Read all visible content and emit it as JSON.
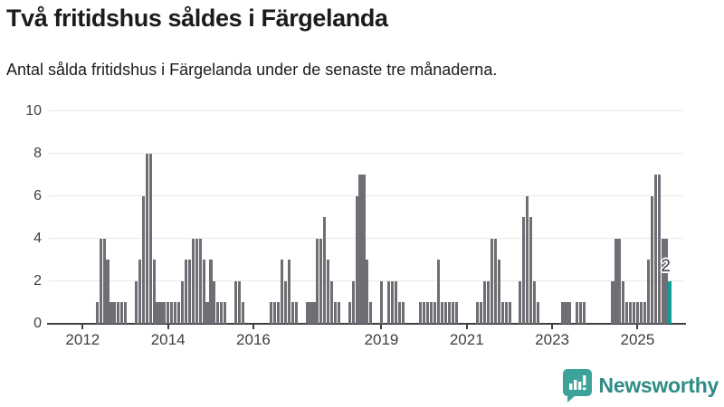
{
  "header": {
    "title": "Två fritidshus såldes i Färgelanda",
    "subtitle": "Antal sålda fritidshus i Färgelanda under de senaste tre månaderna."
  },
  "colors": {
    "bar_gray": "#6f6e74",
    "accent_teal": "#0f9f98",
    "grid": "#e9e9e9",
    "axis": "#403f44",
    "text": "#3e3e43",
    "logo_bubble": "#3da39a",
    "logo_text": "#2e8b85"
  },
  "chart_data": {
    "type": "bar",
    "title": "Två fritidshus såldes i Färgelanda",
    "subtitle": "Antal sålda fritidshus i Färgelanda under de senaste tre månaderna.",
    "ylabel": "",
    "xlabel": "",
    "ylim": [
      0,
      10
    ],
    "yticks": [
      0,
      2,
      4,
      6,
      8,
      10
    ],
    "xtick_years": [
      2012,
      2014,
      2016,
      2019,
      2021,
      2023,
      2025
    ],
    "x_domain_months": [
      "2011-04",
      "2026-01"
    ],
    "grid": true,
    "months_not_listed_are_zero": true,
    "values": [
      [
        "2012-05",
        1
      ],
      [
        "2012-06",
        4
      ],
      [
        "2012-07",
        4
      ],
      [
        "2012-08",
        3
      ],
      [
        "2012-09",
        1
      ],
      [
        "2012-10",
        1
      ],
      [
        "2012-11",
        1
      ],
      [
        "2012-12",
        1
      ],
      [
        "2013-01",
        1
      ],
      [
        "2013-04",
        2
      ],
      [
        "2013-05",
        3
      ],
      [
        "2013-06",
        6
      ],
      [
        "2013-07",
        8
      ],
      [
        "2013-08",
        8
      ],
      [
        "2013-09",
        3
      ],
      [
        "2013-10",
        1
      ],
      [
        "2013-11",
        1
      ],
      [
        "2013-12",
        1
      ],
      [
        "2014-01",
        1
      ],
      [
        "2014-02",
        1
      ],
      [
        "2014-03",
        1
      ],
      [
        "2014-04",
        1
      ],
      [
        "2014-05",
        2
      ],
      [
        "2014-06",
        3
      ],
      [
        "2014-07",
        3
      ],
      [
        "2014-08",
        4
      ],
      [
        "2014-09",
        4
      ],
      [
        "2014-10",
        4
      ],
      [
        "2014-11",
        3
      ],
      [
        "2014-12",
        1
      ],
      [
        "2015-01",
        3
      ],
      [
        "2015-02",
        2
      ],
      [
        "2015-03",
        1
      ],
      [
        "2015-04",
        1
      ],
      [
        "2015-05",
        1
      ],
      [
        "2015-08",
        2
      ],
      [
        "2015-09",
        2
      ],
      [
        "2015-10",
        1
      ],
      [
        "2016-06",
        1
      ],
      [
        "2016-07",
        1
      ],
      [
        "2016-08",
        1
      ],
      [
        "2016-09",
        3
      ],
      [
        "2016-10",
        2
      ],
      [
        "2016-11",
        3
      ],
      [
        "2016-12",
        1
      ],
      [
        "2017-01",
        1
      ],
      [
        "2017-04",
        1
      ],
      [
        "2017-05",
        1
      ],
      [
        "2017-06",
        1
      ],
      [
        "2017-07",
        4
      ],
      [
        "2017-08",
        4
      ],
      [
        "2017-09",
        5
      ],
      [
        "2017-10",
        3
      ],
      [
        "2017-11",
        2
      ],
      [
        "2017-12",
        1
      ],
      [
        "2018-01",
        1
      ],
      [
        "2018-04",
        1
      ],
      [
        "2018-05",
        2
      ],
      [
        "2018-06",
        6
      ],
      [
        "2018-07",
        7
      ],
      [
        "2018-08",
        7
      ],
      [
        "2018-09",
        3
      ],
      [
        "2018-10",
        1
      ],
      [
        "2019-01",
        2
      ],
      [
        "2019-03",
        2
      ],
      [
        "2019-04",
        2
      ],
      [
        "2019-05",
        2
      ],
      [
        "2019-06",
        1
      ],
      [
        "2019-07",
        1
      ],
      [
        "2019-12",
        1
      ],
      [
        "2020-01",
        1
      ],
      [
        "2020-02",
        1
      ],
      [
        "2020-03",
        1
      ],
      [
        "2020-04",
        1
      ],
      [
        "2020-05",
        3
      ],
      [
        "2020-06",
        1
      ],
      [
        "2020-07",
        1
      ],
      [
        "2020-08",
        1
      ],
      [
        "2020-09",
        1
      ],
      [
        "2020-10",
        1
      ],
      [
        "2021-04",
        1
      ],
      [
        "2021-05",
        1
      ],
      [
        "2021-06",
        2
      ],
      [
        "2021-07",
        2
      ],
      [
        "2021-08",
        4
      ],
      [
        "2021-09",
        4
      ],
      [
        "2021-10",
        3
      ],
      [
        "2021-11",
        1
      ],
      [
        "2021-12",
        1
      ],
      [
        "2022-01",
        1
      ],
      [
        "2022-04",
        2
      ],
      [
        "2022-05",
        5
      ],
      [
        "2022-06",
        6
      ],
      [
        "2022-07",
        5
      ],
      [
        "2022-08",
        2
      ],
      [
        "2022-09",
        1
      ],
      [
        "2023-04",
        1
      ],
      [
        "2023-05",
        1
      ],
      [
        "2023-06",
        1
      ],
      [
        "2023-08",
        1
      ],
      [
        "2023-09",
        1
      ],
      [
        "2023-10",
        1
      ],
      [
        "2024-06",
        2
      ],
      [
        "2024-07",
        4
      ],
      [
        "2024-08",
        4
      ],
      [
        "2024-09",
        2
      ],
      [
        "2024-10",
        1
      ],
      [
        "2024-11",
        1
      ],
      [
        "2024-12",
        1
      ],
      [
        "2025-01",
        1
      ],
      [
        "2025-02",
        1
      ],
      [
        "2025-03",
        1
      ],
      [
        "2025-04",
        3
      ],
      [
        "2025-05",
        6
      ],
      [
        "2025-06",
        7
      ],
      [
        "2025-07",
        7
      ],
      [
        "2025-08",
        4
      ],
      [
        "2025-09",
        4
      ],
      [
        "2025-10",
        2
      ]
    ],
    "highlight": {
      "month": "2025-10",
      "value": 2,
      "label": "2",
      "color": "#0f9f98"
    },
    "legend": null
  },
  "footer": {
    "brand": "Newsworthy",
    "logo_icon": "bar-chart-speech-bubble-icon"
  }
}
